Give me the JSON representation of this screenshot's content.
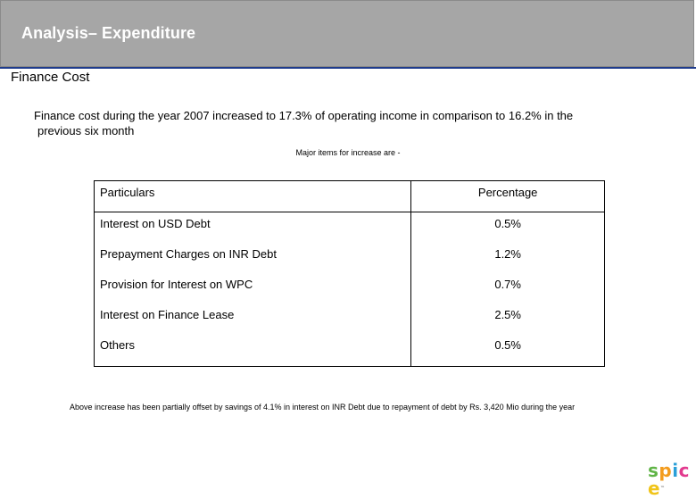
{
  "header": {
    "title": "Analysis– Expenditure"
  },
  "section": {
    "title": "Finance Cost"
  },
  "intro": {
    "line1": "Finance cost during the year 2007 increased to 17.3% of operating income in comparison to 16.2% in the",
    "line2": "previous six month"
  },
  "caption": "Major items for increase are -",
  "table": {
    "headers": [
      "Particulars",
      "Percentage"
    ],
    "rows": [
      {
        "item": "Interest on USD Debt",
        "pct": "0.5%"
      },
      {
        "item": "Prepayment Charges on INR Debt",
        "pct": "1.2%"
      },
      {
        "item": "Provision for Interest on WPC",
        "pct": "0.7%"
      },
      {
        "item": "Interest on Finance Lease",
        "pct": "2.5%"
      },
      {
        "item": "Others",
        "pct": "0.5%"
      }
    ]
  },
  "footnote": "Above increase has been partially offset by savings of 4.1% in interest on INR Debt due to repayment of debt by Rs. 3,420 Mio during the year",
  "logo": {
    "letters": [
      "s",
      "p",
      "i",
      "c",
      "e"
    ],
    "colors": [
      "#5fb446",
      "#f39c1e",
      "#2a9fd8",
      "#e23a8e",
      "#f0c419"
    ],
    "tm": "™"
  }
}
